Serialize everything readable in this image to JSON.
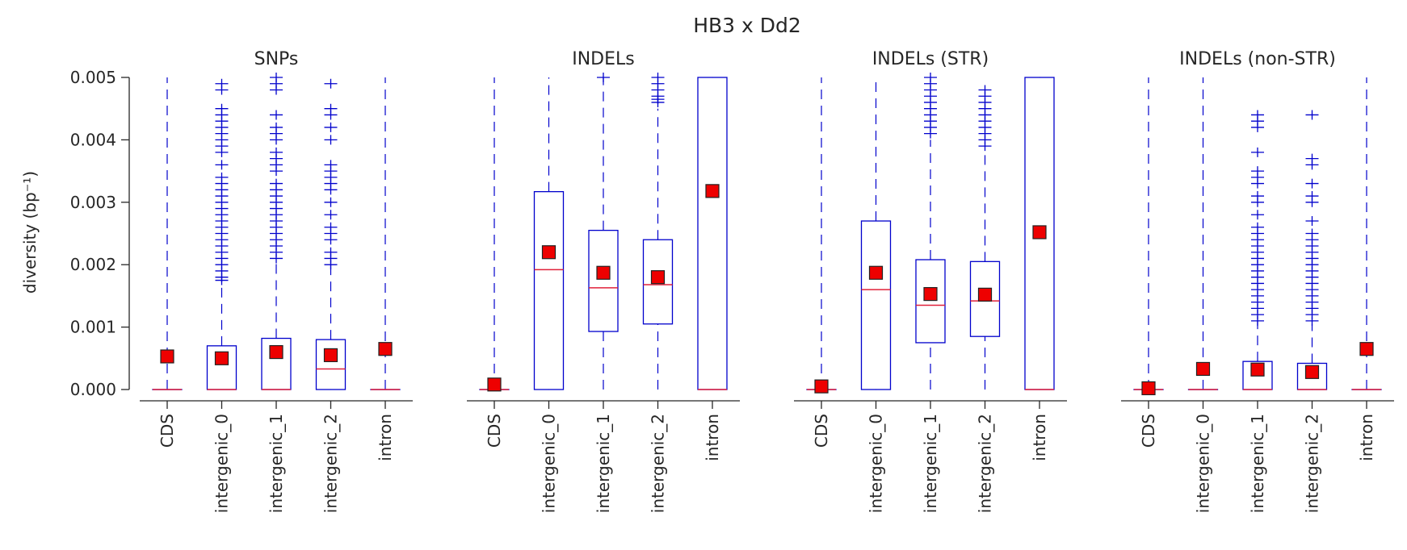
{
  "chart_data": {
    "title": "HB3 x Dd2",
    "type": "box",
    "ylabel": "diversity (bp⁻¹)",
    "ylim": [
      0.0,
      0.005
    ],
    "yticks": [
      "0.000",
      "0.001",
      "0.002",
      "0.003",
      "0.004",
      "0.005"
    ],
    "categories": [
      "CDS",
      "intergenic_0",
      "intergenic_1",
      "intergenic_2",
      "intron"
    ],
    "colors": {
      "box": "#0000cc",
      "median": "#e0203a",
      "mean_fill": "#ee0000",
      "mean_stroke": "#222222",
      "axis": "#262626"
    },
    "panels": [
      {
        "title": "SNPs",
        "boxes": [
          {
            "q1": 0,
            "median": 0,
            "q3": 0,
            "whisker_low": 0,
            "whisker_high": 0.005,
            "mean": 0.00053,
            "outliers": []
          },
          {
            "q1": 0,
            "median": 0,
            "q3": 0.0007,
            "whisker_low": 0,
            "whisker_high": 0.0017,
            "mean": 0.0005,
            "outliers": [
              0.00175,
              0.0018,
              0.0019,
              0.002,
              0.0021,
              0.0022,
              0.0023,
              0.0024,
              0.0025,
              0.0026,
              0.0027,
              0.0028,
              0.0029,
              0.003,
              0.0031,
              0.0032,
              0.0033,
              0.0034,
              0.0036,
              0.0038,
              0.0039,
              0.004,
              0.0041,
              0.0042,
              0.0043,
              0.0044,
              0.0045,
              0.0048,
              0.0049
            ]
          },
          {
            "q1": 0,
            "median": 0,
            "q3": 0.00082,
            "whisker_low": 0,
            "whisker_high": 0.00205,
            "mean": 0.0006,
            "outliers": [
              0.0021,
              0.0022,
              0.0023,
              0.0024,
              0.0025,
              0.0026,
              0.0027,
              0.0028,
              0.0029,
              0.003,
              0.0031,
              0.0032,
              0.0033,
              0.0035,
              0.0036,
              0.0037,
              0.0038,
              0.004,
              0.0041,
              0.0042,
              0.0044,
              0.0048,
              0.0049,
              0.005
            ]
          },
          {
            "q1": 0,
            "median": 0.00033,
            "q3": 0.0008,
            "whisker_low": 0,
            "whisker_high": 0.002,
            "mean": 0.00055,
            "outliers": [
              0.002,
              0.0021,
              0.0022,
              0.0024,
              0.0025,
              0.0026,
              0.0028,
              0.003,
              0.0032,
              0.0033,
              0.0034,
              0.0035,
              0.0036,
              0.004,
              0.0042,
              0.0044,
              0.0045,
              0.0049
            ]
          },
          {
            "q1": 0,
            "median": 0,
            "q3": 0,
            "whisker_low": 0,
            "whisker_high": 0.005,
            "mean": 0.00065,
            "outliers": []
          }
        ]
      },
      {
        "title": "INDELs",
        "boxes": [
          {
            "q1": 0,
            "median": 0,
            "q3": 0,
            "whisker_low": 0,
            "whisker_high": 0.005,
            "mean": 8e-05,
            "outliers": []
          },
          {
            "q1": 0,
            "median": 0.00192,
            "q3": 0.00317,
            "whisker_low": 0,
            "whisker_high": 0.005,
            "mean": 0.0022,
            "outliers": []
          },
          {
            "q1": 0.00093,
            "median": 0.00163,
            "q3": 0.00255,
            "whisker_low": 0,
            "whisker_high": 0.005,
            "mean": 0.00187,
            "outliers": [
              0.005
            ]
          },
          {
            "q1": 0.00105,
            "median": 0.00168,
            "q3": 0.0024,
            "whisker_low": 0,
            "whisker_high": 0.0045,
            "mean": 0.0018,
            "outliers": [
              0.0046,
              0.00465,
              0.0047,
              0.0048,
              0.0049,
              0.005
            ]
          },
          {
            "q1": 0,
            "median": 0,
            "q3": 0.005,
            "whisker_low": 0,
            "whisker_high": 0.005,
            "mean": 0.00318,
            "outliers": []
          }
        ]
      },
      {
        "title": "INDELs (STR)",
        "boxes": [
          {
            "q1": 0,
            "median": 0,
            "q3": 0,
            "whisker_low": 0,
            "whisker_high": 0.005,
            "mean": 5e-05,
            "outliers": []
          },
          {
            "q1": 0,
            "median": 0.0016,
            "q3": 0.0027,
            "whisker_low": 0,
            "whisker_high": 0.005,
            "mean": 0.00187,
            "outliers": []
          },
          {
            "q1": 0.00075,
            "median": 0.00135,
            "q3": 0.00208,
            "whisker_low": 0,
            "whisker_high": 0.004,
            "mean": 0.00153,
            "outliers": [
              0.0041,
              0.0042,
              0.0043,
              0.0044,
              0.0045,
              0.0046,
              0.0047,
              0.0048,
              0.0049,
              0.005
            ]
          },
          {
            "q1": 0.00085,
            "median": 0.00142,
            "q3": 0.00205,
            "whisker_low": 0,
            "whisker_high": 0.0038,
            "mean": 0.00152,
            "outliers": [
              0.0039,
              0.004,
              0.0041,
              0.0042,
              0.0043,
              0.0044,
              0.0045,
              0.0046,
              0.0047,
              0.0048
            ]
          },
          {
            "q1": 0,
            "median": 0,
            "q3": 0.005,
            "whisker_low": 0,
            "whisker_high": 0.005,
            "mean": 0.00252,
            "outliers": []
          }
        ]
      },
      {
        "title": "INDELs (non-STR)",
        "boxes": [
          {
            "q1": 0,
            "median": 0,
            "q3": 0,
            "whisker_low": 0,
            "whisker_high": 0.005,
            "mean": 2e-05,
            "outliers": []
          },
          {
            "q1": 0,
            "median": 0,
            "q3": 0,
            "whisker_low": 0,
            "whisker_high": 0.005,
            "mean": 0.00033,
            "outliers": []
          },
          {
            "q1": 0,
            "median": 0,
            "q3": 0.00045,
            "whisker_low": 0,
            "whisker_high": 0.0011,
            "mean": 0.00032,
            "outliers": [
              0.0011,
              0.0012,
              0.0013,
              0.0014,
              0.0015,
              0.0016,
              0.0017,
              0.0018,
              0.0019,
              0.002,
              0.0021,
              0.0022,
              0.0023,
              0.0024,
              0.0025,
              0.0026,
              0.0028,
              0.003,
              0.0031,
              0.0033,
              0.0034,
              0.0035,
              0.0038,
              0.0042,
              0.0043,
              0.0044
            ]
          },
          {
            "q1": 0,
            "median": 0,
            "q3": 0.00042,
            "whisker_low": 0,
            "whisker_high": 0.00105,
            "mean": 0.00028,
            "outliers": [
              0.0011,
              0.0012,
              0.0013,
              0.0014,
              0.0015,
              0.0016,
              0.0017,
              0.0018,
              0.0019,
              0.002,
              0.0021,
              0.0022,
              0.0023,
              0.0024,
              0.0025,
              0.0027,
              0.003,
              0.0031,
              0.0033,
              0.0036,
              0.0037,
              0.0044
            ]
          },
          {
            "q1": 0,
            "median": 0,
            "q3": 0,
            "whisker_low": 0,
            "whisker_high": 0.005,
            "mean": 0.00065,
            "outliers": []
          }
        ]
      }
    ]
  }
}
